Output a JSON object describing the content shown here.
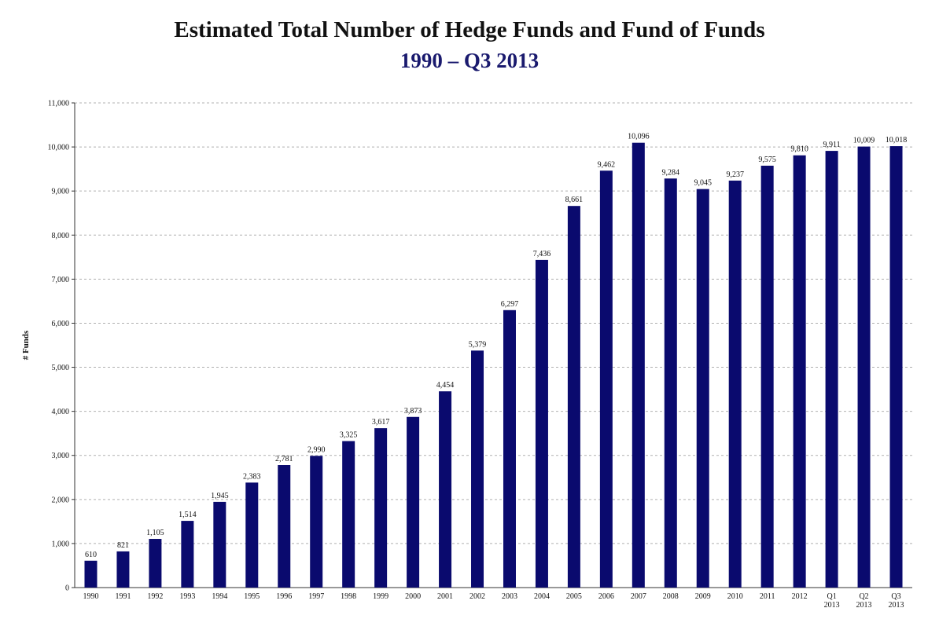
{
  "chart_data": {
    "type": "bar",
    "title": "Estimated Total Number of Hedge Funds and Fund of Funds",
    "subtitle": "1990 – Q3 2013",
    "xlabel": "",
    "ylabel": "# Funds",
    "ylim": [
      0,
      11000
    ],
    "yticks": [
      "0",
      "1,000",
      "2,000",
      "3,000",
      "4,000",
      "5,000",
      "6,000",
      "7,000",
      "8,000",
      "9,000",
      "10,000",
      "11,000"
    ],
    "grid": true,
    "legend": "none",
    "bar_color": "#0a0a6e",
    "categories": [
      "1990",
      "1991",
      "1992",
      "1993",
      "1994",
      "1995",
      "1996",
      "1997",
      "1998",
      "1999",
      "2000",
      "2001",
      "2002",
      "2003",
      "2004",
      "2005",
      "2006",
      "2007",
      "2008",
      "2009",
      "2010",
      "2011",
      "2012",
      "Q1 2013",
      "Q2 2013",
      "Q3 2013"
    ],
    "values": [
      610,
      821,
      1105,
      1514,
      1945,
      2383,
      2781,
      2990,
      3325,
      3617,
      3873,
      4454,
      5379,
      6297,
      7436,
      8661,
      9462,
      10096,
      9284,
      9045,
      9237,
      9575,
      9810,
      9911,
      10009,
      10018
    ],
    "data_labels": [
      "610",
      "821",
      "1,105",
      "1,514",
      "1,945",
      "2,383",
      "2,781",
      "2,990",
      "3,325",
      "3,617",
      "3,873",
      "4,454",
      "5,379",
      "6,297",
      "7,436",
      "8,661",
      "9,462",
      "10,096",
      "9,284",
      "9,045",
      "9,237",
      "9,575",
      "9,810",
      "9,911",
      "10,009",
      "10,018"
    ]
  }
}
